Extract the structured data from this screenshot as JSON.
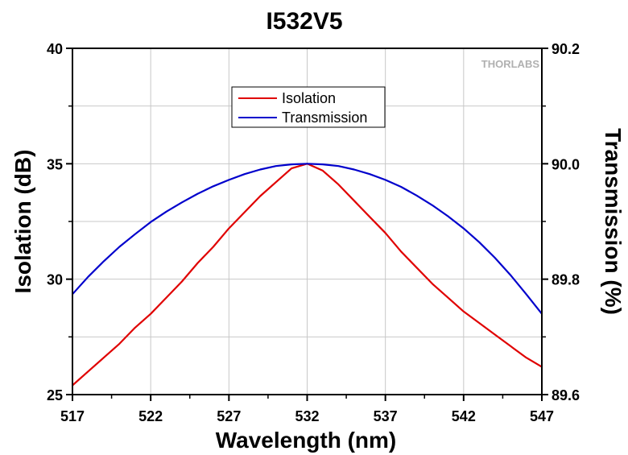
{
  "chart_data": {
    "type": "line",
    "title": "I532V5",
    "xlabel": "Wavelength (nm)",
    "ylabel": "Isolation (dB)",
    "y2label": "Transmission (%)",
    "xlim": [
      517,
      547
    ],
    "ylim": [
      25,
      40
    ],
    "y2lim": [
      89.6,
      90.2
    ],
    "xticks": [
      "517",
      "522",
      "527",
      "532",
      "537",
      "542",
      "547"
    ],
    "yticks": [
      "25",
      "30",
      "35",
      "40"
    ],
    "y2ticks": [
      "89.6",
      "89.8",
      "90.0",
      "90.2"
    ],
    "grid": true,
    "legend_position": "top-center",
    "watermark": "THORLABS",
    "series": [
      {
        "name": "Isolation",
        "axis": "left",
        "color": "#e00000",
        "x": [
          517,
          518,
          519,
          520,
          521,
          522,
          523,
          524,
          525,
          526,
          527,
          528,
          529,
          530,
          531,
          532,
          533,
          534,
          535,
          536,
          537,
          538,
          539,
          540,
          541,
          542,
          543,
          544,
          545,
          546,
          547
        ],
        "y": [
          25.4,
          26.0,
          26.6,
          27.2,
          27.9,
          28.5,
          29.2,
          29.9,
          30.7,
          31.4,
          32.2,
          32.9,
          33.6,
          34.2,
          34.8,
          35.0,
          34.7,
          34.1,
          33.4,
          32.7,
          32.0,
          31.2,
          30.5,
          29.8,
          29.2,
          28.6,
          28.1,
          27.6,
          27.1,
          26.6,
          26.2
        ]
      },
      {
        "name": "Transmission",
        "axis": "right",
        "color": "#0000cc",
        "x": [
          517,
          518,
          519,
          520,
          521,
          522,
          523,
          524,
          525,
          526,
          527,
          528,
          529,
          530,
          531,
          532,
          533,
          534,
          535,
          536,
          537,
          538,
          539,
          540,
          541,
          542,
          543,
          544,
          545,
          546,
          547
        ],
        "y": [
          89.774,
          89.804,
          89.831,
          89.856,
          89.878,
          89.899,
          89.917,
          89.933,
          89.948,
          89.961,
          89.972,
          89.982,
          89.99,
          89.996,
          89.999,
          90.0,
          89.999,
          89.996,
          89.99,
          89.982,
          89.972,
          89.96,
          89.945,
          89.928,
          89.909,
          89.888,
          89.864,
          89.837,
          89.807,
          89.774,
          89.74
        ]
      }
    ]
  }
}
